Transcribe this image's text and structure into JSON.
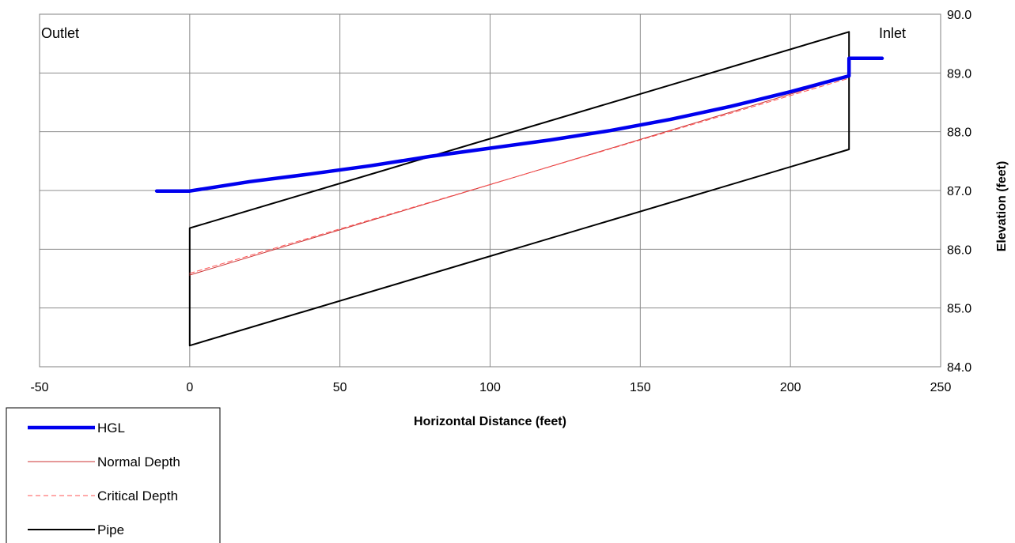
{
  "chart_data": {
    "type": "line",
    "title": "",
    "xlabel": "Horizontal Distance (feet)",
    "ylabel": "Elevation (feet)",
    "xlim": [
      -50,
      250
    ],
    "ylim": [
      84.0,
      90.0
    ],
    "x_ticks": [
      "-50",
      "0",
      "50",
      "100",
      "150",
      "200",
      "250"
    ],
    "y_ticks": [
      "84.0",
      "85.0",
      "86.0",
      "87.0",
      "88.0",
      "89.0",
      "90.0"
    ],
    "grid": true,
    "y_axis_side": "right",
    "legend_position": "bottom-left",
    "annotations": [
      {
        "text": "Outlet",
        "position": "top-left"
      },
      {
        "text": "Inlet",
        "position": "top-right"
      }
    ],
    "series": [
      {
        "name": "HGL",
        "color": "#0000ee",
        "style": "solid-thick",
        "points": [
          [
            -11,
            86.99
          ],
          [
            0,
            86.99
          ],
          [
            20,
            87.15
          ],
          [
            40,
            87.28
          ],
          [
            60,
            87.42
          ],
          [
            80,
            87.58
          ],
          [
            100,
            87.72
          ],
          [
            120,
            87.86
          ],
          [
            140,
            88.02
          ],
          [
            160,
            88.21
          ],
          [
            180,
            88.43
          ],
          [
            200,
            88.68
          ],
          [
            219.5,
            88.95
          ],
          [
            219.5,
            89.25
          ],
          [
            230.5,
            89.25
          ]
        ]
      },
      {
        "name": "Normal Depth",
        "color": "#cc3333",
        "style": "solid-thin",
        "points": [
          [
            0,
            85.56
          ],
          [
            219.5,
            88.94
          ]
        ]
      },
      {
        "name": "Critical Depth",
        "color": "#ff5555",
        "style": "dashed",
        "points": [
          [
            0,
            85.59
          ],
          [
            219.5,
            88.91
          ]
        ]
      },
      {
        "name": "Pipe",
        "color": "#000000",
        "style": "solid",
        "points": [
          [
            0,
            84.36
          ],
          [
            219.5,
            87.7
          ],
          [
            219.5,
            89.7
          ],
          [
            0,
            86.36
          ],
          [
            0,
            84.36
          ]
        ]
      }
    ]
  }
}
